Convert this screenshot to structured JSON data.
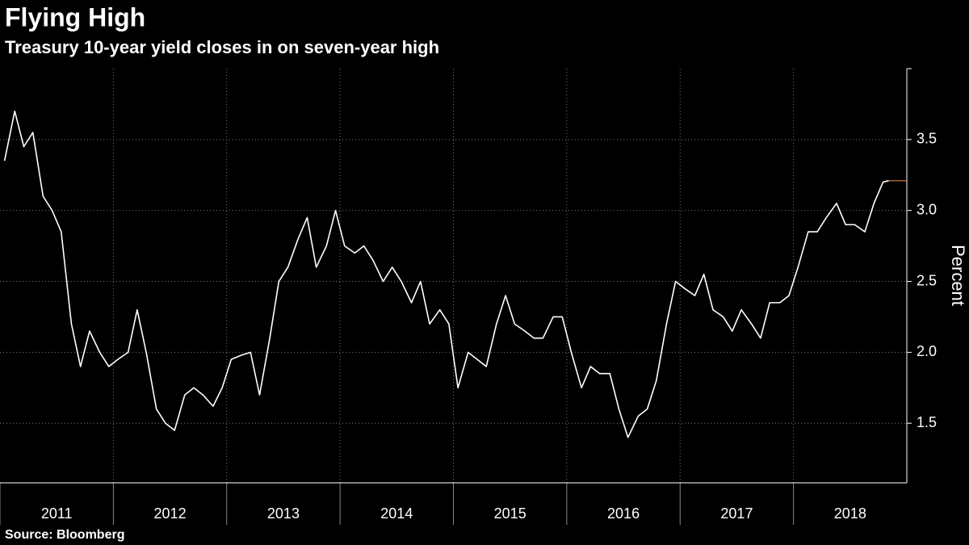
{
  "chart_data": {
    "type": "line",
    "title": "Flying High",
    "subtitle": "Treasury 10-year yield closes in on seven-year high",
    "y_label": "Percent",
    "source": "Source: Bloomberg",
    "x": [
      2011.04,
      2011.13,
      2011.21,
      2011.29,
      2011.38,
      2011.46,
      2011.54,
      2011.63,
      2011.71,
      2011.79,
      2011.88,
      2011.96,
      2012.04,
      2012.13,
      2012.21,
      2012.29,
      2012.38,
      2012.46,
      2012.54,
      2012.63,
      2012.71,
      2012.79,
      2012.88,
      2012.96,
      2013.04,
      2013.13,
      2013.21,
      2013.29,
      2013.38,
      2013.46,
      2013.54,
      2013.63,
      2013.71,
      2013.79,
      2013.88,
      2013.96,
      2014.04,
      2014.13,
      2014.21,
      2014.29,
      2014.38,
      2014.46,
      2014.54,
      2014.63,
      2014.71,
      2014.79,
      2014.88,
      2014.96,
      2015.04,
      2015.13,
      2015.21,
      2015.29,
      2015.38,
      2015.46,
      2015.54,
      2015.63,
      2015.71,
      2015.79,
      2015.88,
      2015.96,
      2016.04,
      2016.13,
      2016.21,
      2016.29,
      2016.38,
      2016.46,
      2016.54,
      2016.63,
      2016.71,
      2016.79,
      2016.88,
      2016.96,
      2017.04,
      2017.13,
      2017.21,
      2017.29,
      2017.38,
      2017.46,
      2017.54,
      2017.63,
      2017.71,
      2017.79,
      2017.88,
      2017.96,
      2018.04,
      2018.13,
      2018.21,
      2018.29,
      2018.38,
      2018.46,
      2018.54,
      2018.63,
      2018.71,
      2018.79,
      2018.84
    ],
    "series": [
      {
        "name": "Treasury 10-year yield",
        "color": "#ffffff",
        "values": [
          3.35,
          3.7,
          3.45,
          3.55,
          3.1,
          3.0,
          2.85,
          2.2,
          1.9,
          2.15,
          2.0,
          1.9,
          1.95,
          2.0,
          2.3,
          2.0,
          1.6,
          1.5,
          1.45,
          1.7,
          1.75,
          1.7,
          1.62,
          1.75,
          1.95,
          1.98,
          2.0,
          1.7,
          2.1,
          2.5,
          2.6,
          2.8,
          2.95,
          2.6,
          2.75,
          3.0,
          2.75,
          2.7,
          2.75,
          2.65,
          2.5,
          2.6,
          2.5,
          2.35,
          2.5,
          2.2,
          2.3,
          2.2,
          1.75,
          2.0,
          1.95,
          1.9,
          2.2,
          2.4,
          2.2,
          2.15,
          2.1,
          2.1,
          2.25,
          2.25,
          2.0,
          1.75,
          1.9,
          1.85,
          1.85,
          1.6,
          1.4,
          1.55,
          1.6,
          1.8,
          2.2,
          2.5,
          2.45,
          2.4,
          2.55,
          2.3,
          2.25,
          2.15,
          2.3,
          2.2,
          2.1,
          2.35,
          2.35,
          2.4,
          2.6,
          2.85,
          2.85,
          2.95,
          3.05,
          2.9,
          2.9,
          2.85,
          3.05,
          3.2,
          3.21
        ]
      }
    ],
    "last_value_color": "#e8823a",
    "xlim": [
      2011,
      2019
    ],
    "xticks": [
      2011,
      2012,
      2013,
      2014,
      2015,
      2016,
      2017,
      2018
    ],
    "ylim": [
      1.08,
      4.0
    ],
    "yticks": [
      1.5,
      {
        "value": 2,
        "label": "2.0"
      },
      2.5,
      {
        "value": 3,
        "label": "3.0"
      },
      3.5
    ],
    "grid": true
  }
}
